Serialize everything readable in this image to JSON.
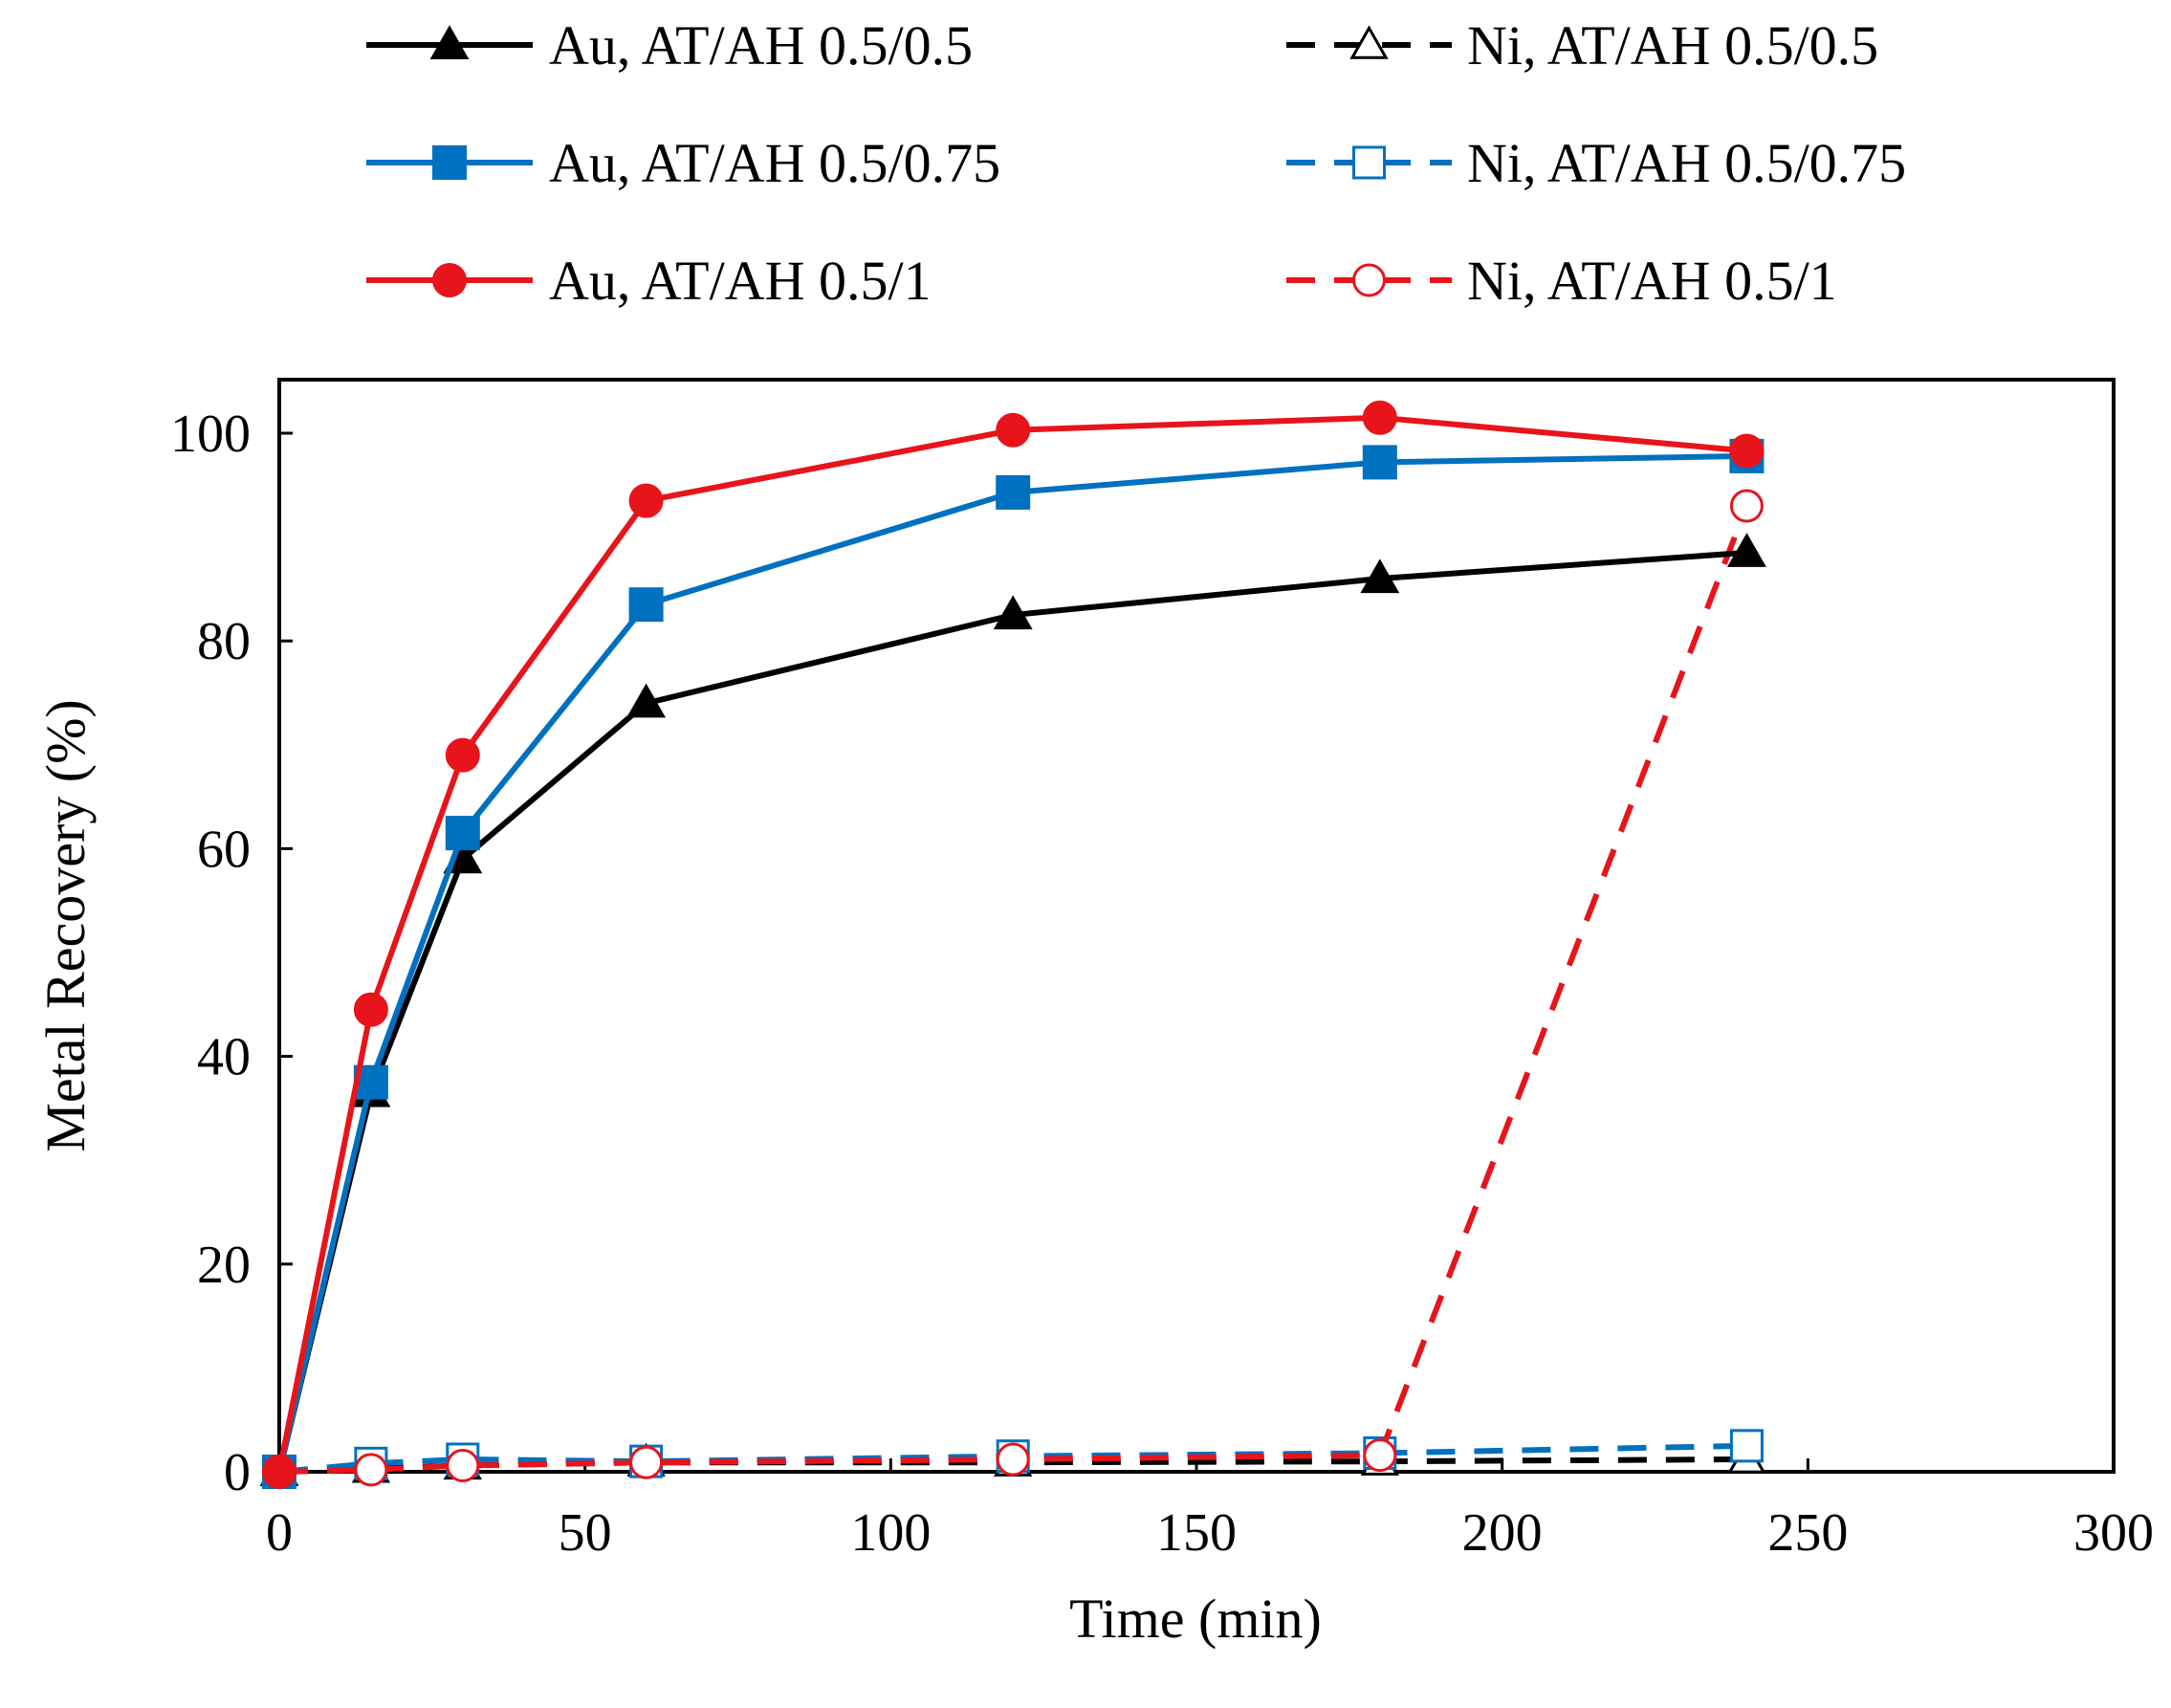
{
  "chart_data": {
    "type": "line",
    "title": "",
    "xlabel": "Time (min)",
    "ylabel": "Metal Recovery (%)",
    "xlim": [
      0,
      300
    ],
    "ylim": [
      0,
      100
    ],
    "x_ticks": [
      "0",
      "50",
      "100",
      "150",
      "200",
      "250",
      "300"
    ],
    "y_ticks": [
      "0",
      "20",
      "40",
      "60",
      "80",
      "100"
    ],
    "x_tick_values": [
      0,
      50,
      100,
      150,
      200,
      250,
      300
    ],
    "y_tick_values": [
      0,
      20,
      40,
      60,
      80,
      100
    ],
    "grid": false,
    "legend_position": "top",
    "series": [
      {
        "name": "Au, AT/AH 0.5/0.5",
        "color": "#000000",
        "marker": "triangle",
        "filled": true,
        "dashed": false,
        "x": [
          0,
          15,
          30,
          60,
          120,
          180,
          240
        ],
        "y": [
          0,
          36.5,
          59,
          74,
          82.5,
          86,
          88.5
        ]
      },
      {
        "name": "Au, AT/AH 0.5/0.75",
        "color": "#0070C0",
        "marker": "square",
        "filled": true,
        "dashed": false,
        "x": [
          0,
          15,
          30,
          60,
          120,
          180,
          240
        ],
        "y": [
          0,
          37.5,
          61.5,
          83.5,
          94.3,
          97.2,
          97.8
        ]
      },
      {
        "name": "Au, AT/AH 0.5/1",
        "color": "#E8141B",
        "marker": "circle",
        "filled": true,
        "dashed": false,
        "x": [
          0,
          15,
          30,
          60,
          120,
          180,
          240
        ],
        "y": [
          0,
          44.5,
          69,
          93.5,
          100.3,
          101.5,
          98.3
        ]
      },
      {
        "name": "Ni, AT/AH 0.5/0.5",
        "color": "#000000",
        "marker": "triangle",
        "filled": false,
        "dashed": true,
        "x": [
          0,
          15,
          30,
          60,
          120,
          180,
          240
        ],
        "y": [
          0,
          0.3,
          0.6,
          0.9,
          0.9,
          1.0,
          1.2
        ]
      },
      {
        "name": "Ni, AT/AH 0.5/0.75",
        "color": "#0070C0",
        "marker": "square",
        "filled": false,
        "dashed": true,
        "x": [
          0,
          15,
          30,
          60,
          120,
          180,
          240
        ],
        "y": [
          0,
          0.8,
          1.2,
          1.0,
          1.5,
          1.8,
          2.5
        ]
      },
      {
        "name": "Ni, AT/AH 0.5/1",
        "color": "#E8141B",
        "marker": "circle",
        "filled": false,
        "dashed": true,
        "x": [
          0,
          15,
          30,
          60,
          120,
          180,
          240
        ],
        "y": [
          0,
          0.2,
          0.6,
          0.9,
          1.2,
          1.6,
          93
        ]
      }
    ]
  }
}
